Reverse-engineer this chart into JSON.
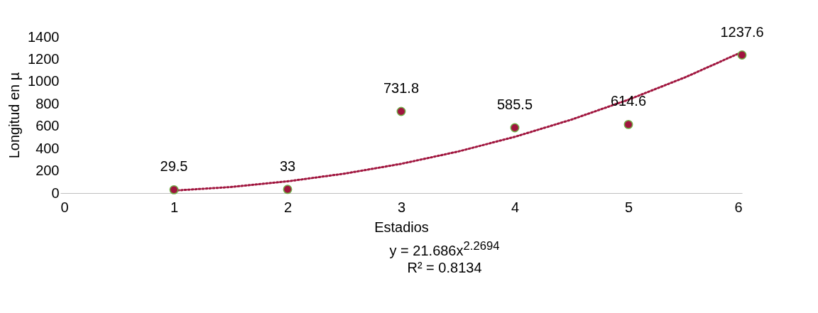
{
  "chart_data": {
    "type": "scatter",
    "xlabel": "Estadios",
    "ylabel": "Longitud en µ",
    "x": [
      1,
      2,
      3,
      4,
      5,
      6
    ],
    "series": [
      {
        "color": "#a0153e",
        "marker": "circle",
        "values": [
          29.5,
          33,
          731.8,
          585.5,
          614.6,
          1237.6
        ],
        "value_labels": [
          "29.5",
          "33",
          "731.8",
          "585.5",
          "614.6",
          "1237.6"
        ]
      },
      {
        "type": "line",
        "color": "#a0153e",
        "line_style": "dotted",
        "x": [
          1,
          1.5,
          2,
          2.5,
          3,
          3.5,
          4,
          4.5,
          5,
          5.5,
          6
        ],
        "values": [
          22,
          54,
          105,
          174,
          262,
          372,
          504,
          659,
          837,
          1038,
          1265
        ]
      }
    ],
    "grid": false,
    "xlim": [
      0,
      6
    ],
    "xticks": [
      0,
      1,
      2,
      3,
      4,
      5,
      6
    ],
    "ylim": [
      0,
      1400
    ],
    "yticks": [
      0,
      200,
      400,
      600,
      800,
      1000,
      1200,
      1400
    ],
    "annotations": [
      "y = 21.686x$^{2.2694}$",
      "R² = 0.8134"
    ]
  }
}
